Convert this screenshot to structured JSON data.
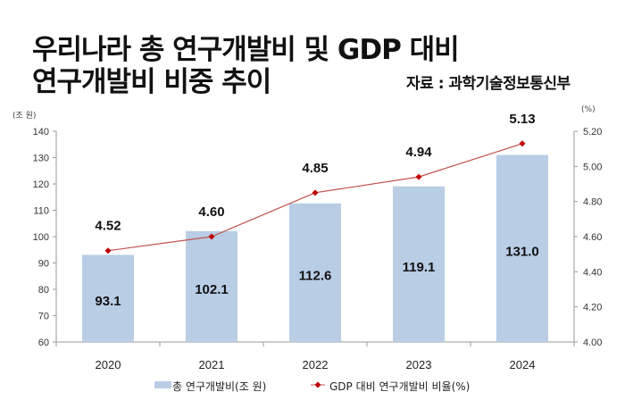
{
  "header": {
    "title_line1": "우리나라 총 연구개발비 및 GDP 대비",
    "title_line2": "연구개발비 비중 추이",
    "source": "자료 : 과학기술정보통신부"
  },
  "chart_data": {
    "type": "bar",
    "title": "우리나라 총 연구개발비 및 GDP 대비 연구개발비 비중 추이",
    "categories": [
      "2020",
      "2021",
      "2022",
      "2023",
      "2024"
    ],
    "series": [
      {
        "name": "총 연구개발비(조 원)",
        "type": "bar",
        "axis": "left",
        "color": "#b9cde5",
        "values": [
          93.1,
          102.1,
          112.6,
          119.1,
          131.0
        ],
        "labels": [
          "93.1",
          "102.1",
          "112.6",
          "119.1",
          "131.0"
        ]
      },
      {
        "name": "GDP 대비 연구개발비 비율(%)",
        "type": "line",
        "axis": "right",
        "color": "#c0504d",
        "marker_color": "#c00000",
        "values": [
          4.52,
          4.6,
          4.85,
          4.94,
          5.13
        ],
        "labels": [
          "4.52",
          "4.60",
          "4.85",
          "4.94",
          "5.13"
        ]
      }
    ],
    "y_left": {
      "label": "(조 원)",
      "range": [
        60,
        140
      ],
      "ticks": [
        "60",
        "70",
        "80",
        "90",
        "100",
        "110",
        "120",
        "130",
        "140"
      ],
      "tick_values": [
        60,
        70,
        80,
        90,
        100,
        110,
        120,
        130,
        140
      ]
    },
    "y_right": {
      "label": "(%)",
      "range": [
        4.0,
        5.2
      ],
      "ticks": [
        "4.00",
        "4.20",
        "4.40",
        "4.60",
        "4.80",
        "5.00",
        "5.20"
      ],
      "tick_values": [
        4.0,
        4.2,
        4.4,
        4.6,
        4.8,
        5.0,
        5.2
      ]
    },
    "grid": false,
    "legend_position": "bottom"
  }
}
